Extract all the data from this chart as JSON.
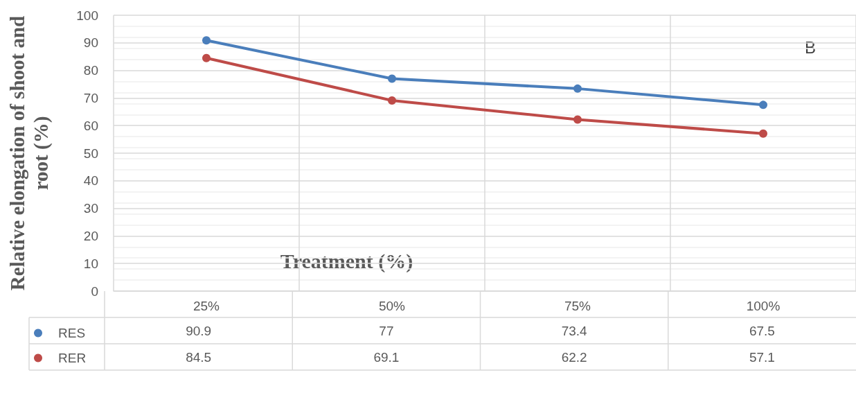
{
  "chart_data": {
    "type": "line",
    "categories": [
      "25%",
      "50%",
      "75%",
      "100%"
    ],
    "series": [
      {
        "name": "RES",
        "color": "#4a7ebb",
        "values": [
          90.9,
          77,
          73.4,
          67.5
        ]
      },
      {
        "name": "RER",
        "color": "#be4b48",
        "values": [
          84.5,
          69.1,
          62.2,
          57.1
        ]
      }
    ],
    "xlabel": "Treatment (%)",
    "ylabel": "Relative elongation of shoot and root (%)",
    "ylim": [
      0,
      100
    ],
    "yticks": [
      0,
      10,
      20,
      30,
      40,
      50,
      60,
      70,
      80,
      90,
      100
    ],
    "grid": true,
    "legend": "bottom left",
    "marker": "circle",
    "data_labels": true,
    "annotations": [
      "B"
    ]
  }
}
